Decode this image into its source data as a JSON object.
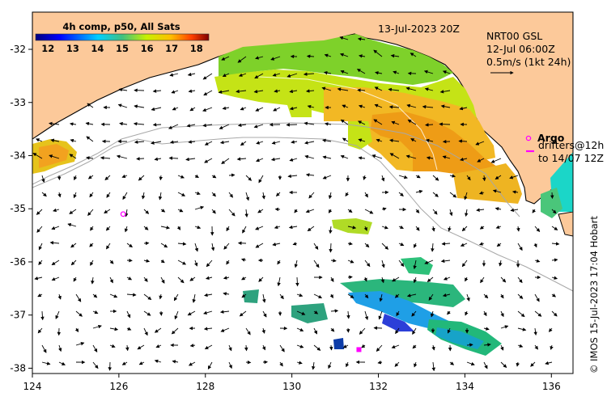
{
  "map": {
    "lon_range": [
      124,
      136.5
    ],
    "lat_range": [
      -38.1,
      -31.3
    ],
    "x_ticks": [
      124,
      126,
      128,
      130,
      132,
      134,
      136
    ],
    "y_ticks": [
      -32,
      -33,
      -34,
      -35,
      -36,
      -37,
      -38
    ],
    "x_tick_labels": [
      "124",
      "126",
      "128",
      "130",
      "132",
      "134",
      "136"
    ],
    "y_tick_labels": [
      "-32",
      "-33",
      "-34",
      "-35",
      "-36",
      "-37",
      "-38"
    ]
  },
  "colorbar": {
    "title": "4h comp, p50, All Sats",
    "min": 11.5,
    "max": 18.5,
    "tick_values": [
      12,
      13,
      14,
      15,
      16,
      17,
      18
    ],
    "tick_labels": [
      "12",
      "13",
      "14",
      "15",
      "16",
      "17",
      "18"
    ]
  },
  "header": {
    "date": "13-Jul-2023 20Z",
    "product": "NRT00 GSL",
    "current_time": "12-Jul 06:00Z",
    "scale_label": "0.5m/s (1kt 24h)"
  },
  "legend": {
    "argo_label": "Argo",
    "drifters_label": "drifters@12h",
    "drifters_to": "to 14/07 12Z"
  },
  "credit": "© IMOS 15-Jul-2023 17:04 Hobart",
  "argo_floats": [
    {
      "lon": 126.1,
      "lat": -35.1
    }
  ],
  "drifters": [
    {
      "lon": 131.55,
      "lat": -37.65
    }
  ],
  "colors": {
    "land": "#fcc99a",
    "coast": "#000000",
    "isobath": "#a8a8a8",
    "argo": "#ff00ff",
    "arrows": "#000000"
  }
}
